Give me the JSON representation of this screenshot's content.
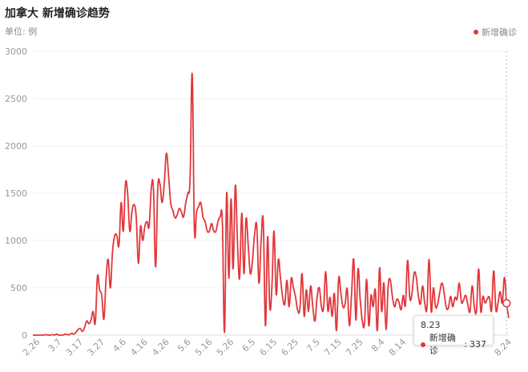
{
  "title": "加拿大 新增确诊趋势",
  "unit": "单位: 例",
  "colors": {
    "series": "#e3363a",
    "grid": "#f0f0f0",
    "axis_text": "#999999",
    "crosshair": "#bbbbbb"
  },
  "tooltip": {
    "date": "8.23",
    "label": "新增确诊",
    "value": "337"
  },
  "chart_data": {
    "type": "line",
    "title": "加拿大 新增确诊趋势",
    "unit": "例",
    "legend": {
      "entries": [
        "新增确诊"
      ],
      "position": "top-right"
    },
    "grid": true,
    "ylim": [
      0,
      3000
    ],
    "y_ticks": [
      "0",
      "500",
      "1000",
      "1500",
      "2000",
      "2500",
      "3000"
    ],
    "x_tick_labels": [
      "2.26",
      "3.7",
      "3.17",
      "3.27",
      "4.6",
      "4.16",
      "4.26",
      "5.6",
      "5.16",
      "5.26",
      "6.5",
      "6.15",
      "6.25",
      "7.5",
      "7.15",
      "7.25",
      "8.4",
      "8.14",
      "8.24"
    ],
    "x_start": "2.24",
    "highlight": {
      "x": "8.23",
      "value": 337
    },
    "series": [
      {
        "name": "新增确诊",
        "values": [
          0,
          0,
          0,
          0,
          0,
          0,
          5,
          0,
          0,
          5,
          0,
          10,
          0,
          0,
          0,
          10,
          5,
          5,
          20,
          10,
          30,
          60,
          70,
          40,
          80,
          150,
          120,
          160,
          250,
          130,
          620,
          480,
          420,
          170,
          600,
          800,
          500,
          880,
          1050,
          1050,
          950,
          1400,
          1100,
          1600,
          1500,
          1100,
          1300,
          1380,
          1250,
          760,
          1150,
          1000,
          1150,
          1200,
          1150,
          1550,
          1550,
          720,
          1550,
          1600,
          1400,
          1600,
          1920,
          1700,
          1400,
          1320,
          1240,
          1270,
          1340,
          1300,
          1250,
          1400,
          1500,
          1650,
          2760,
          1130,
          1300,
          1360,
          1400,
          1250,
          1200,
          1100,
          1100,
          1180,
          1100,
          1100,
          1200,
          1250,
          1200,
          30,
          1500,
          600,
          1440,
          700,
          1580,
          1000,
          600,
          1290,
          650,
          1230,
          950,
          650,
          800,
          1070,
          1150,
          550,
          1000,
          1200,
          100,
          1040,
          300,
          500,
          1100,
          430,
          800,
          600,
          400,
          330,
          580,
          300,
          600,
          500,
          400,
          260,
          280,
          650,
          200,
          480,
          250,
          520,
          300,
          150,
          400,
          500,
          300,
          290,
          670,
          260,
          400,
          200,
          440,
          50,
          600,
          450,
          300,
          330,
          490,
          100,
          440,
          800,
          160,
          700,
          380,
          150,
          120,
          590,
          100,
          420,
          300,
          480,
          50,
          710,
          250,
          550,
          60,
          520,
          580,
          400,
          300,
          380,
          350,
          270,
          420,
          320,
          790,
          400,
          430,
          650,
          620,
          420,
          330,
          520,
          330,
          290,
          800,
          250,
          500,
          300,
          330,
          460,
          550,
          440,
          290,
          290,
          410,
          300,
          400,
          380,
          550,
          350,
          370,
          420,
          320,
          250,
          520,
          300,
          260,
          700,
          250,
          410,
          340,
          380,
          400,
          260,
          680,
          270,
          340,
          460,
          340,
          610,
          337,
          180
        ]
      }
    ]
  }
}
